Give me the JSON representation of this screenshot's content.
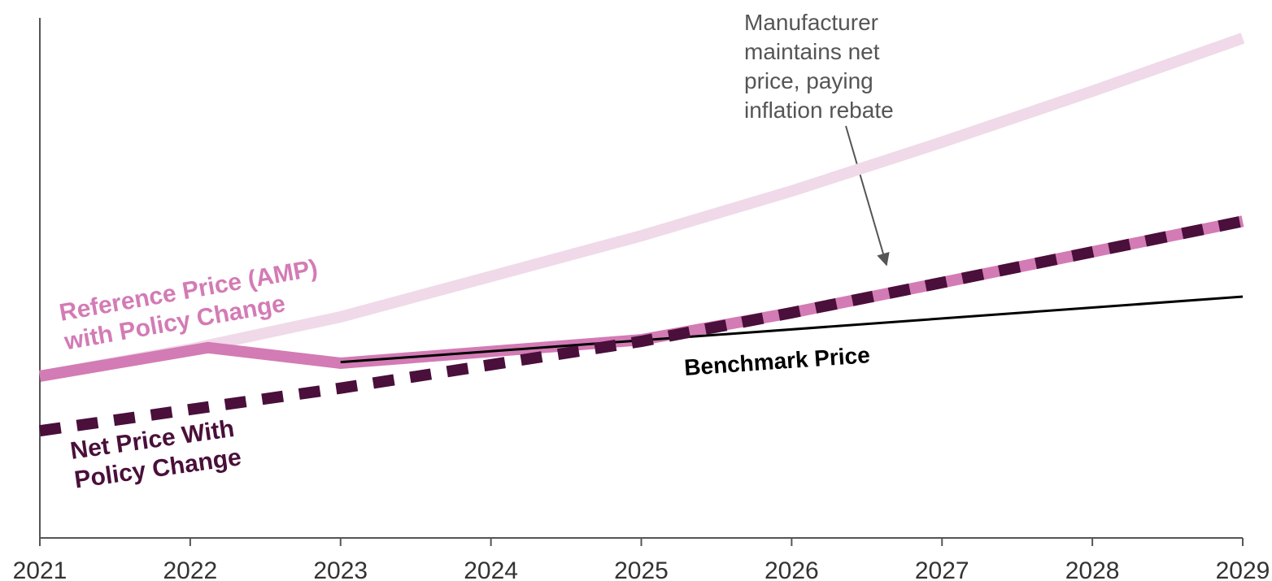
{
  "chart_data": {
    "type": "line",
    "xlim": [
      2021,
      2029
    ],
    "xticks": [
      2021,
      2022,
      2023,
      2024,
      2025,
      2026,
      2027,
      2028,
      2029
    ],
    "ylim": [
      0,
      100
    ],
    "series": [
      {
        "color": "#f0d9e8",
        "x": [
          2021,
          2022,
          2023,
          2024,
          2025,
          2026,
          2027,
          2028,
          2029
        ],
        "values": [
          31.1,
          36.3,
          42.5,
          50.3,
          58.1,
          66.7,
          76.1,
          85.9,
          96.1
        ]
      },
      {
        "color": "#d37bb5",
        "x": [
          2021,
          2022.12,
          2023,
          2025,
          2026,
          2027,
          2028,
          2029
        ],
        "values": [
          31.1,
          36.6,
          33.6,
          38.1,
          43.3,
          49.1,
          55.0,
          60.9
        ]
      },
      {
        "color": "#000000",
        "x": [
          2023,
          2029
        ],
        "values": [
          33.8,
          46.4
        ]
      },
      {
        "color": "#4a0f3a",
        "dashed": true,
        "x": [
          2021,
          2023,
          2025,
          2026,
          2027,
          2028,
          2029
        ],
        "values": [
          20.6,
          28.8,
          37.8,
          43.3,
          49.1,
          55.0,
          60.9
        ]
      }
    ],
    "annotations": [
      {
        "lines": [
          "Reference Price (AMP)",
          "with Policy Change"
        ],
        "color": "#d37bb5"
      },
      {
        "lines": [
          "Net Price With",
          "Policy Change"
        ],
        "color": "#4a0f3a"
      },
      {
        "lines": [
          "Benchmark Price"
        ],
        "color": "#000000"
      },
      {
        "lines": [
          "Manufacturer",
          "maintains net",
          "price, paying",
          "inflation rebate"
        ],
        "color": "#555555"
      }
    ]
  }
}
